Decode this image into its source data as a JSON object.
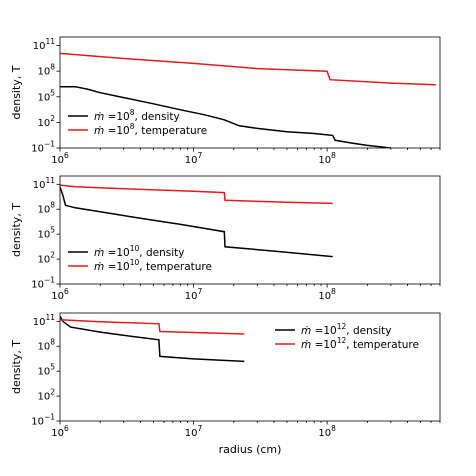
{
  "chart_data": [
    {
      "type": "line",
      "xscale": "log",
      "yscale": "log",
      "xlim": [
        1000000.0,
        700000000.0
      ],
      "ylim": [
        0.1,
        1000000000000.0
      ],
      "xlabel": "",
      "ylabel": "density, T",
      "x_tick_labels": [
        "10^6",
        "10^7",
        "10^8"
      ],
      "y_tick_labels": [
        "10^-1",
        "10^2",
        "10^5",
        "10^8",
        "10^11"
      ],
      "legend_loc": "lower-left",
      "series": [
        {
          "name": "ṁ = 10^8, density",
          "color": "#000000",
          "x": [
            1000000.0,
            1300000.0,
            1600000.0,
            2000000.0,
            3000000.0,
            5000000.0,
            8000000.0,
            12000000.0,
            17000000.0,
            22000000.0,
            30000000.0,
            50000000.0,
            80000000.0,
            110000000.0,
            115000000.0,
            150000000.0,
            200000000.0,
            300000000.0
          ],
          "y": [
            1500000.0,
            1500000.0,
            800000.0,
            300000.0,
            80000.0,
            15000.0,
            3000.0,
            800,
            200,
            40,
            20,
            8,
            5,
            3,
            0.8,
            0.4,
            0.2,
            0.1
          ]
        },
        {
          "name": "ṁ = 10^8, temperature",
          "color": "#e41a1c",
          "x": [
            1000000.0,
            3000000.0,
            10000000.0,
            30000000.0,
            100000000.0,
            105000000.0,
            300000000.0,
            650000000.0
          ],
          "y": [
            12000000000.0,
            3000000000.0,
            800000000.0,
            200000000.0,
            100000000.0,
            10000000.0,
            4000000.0,
            2500000.0
          ]
        }
      ]
    },
    {
      "type": "line",
      "xscale": "log",
      "yscale": "log",
      "xlim": [
        1000000.0,
        700000000.0
      ],
      "ylim": [
        0.1,
        1000000000000.0
      ],
      "xlabel": "",
      "ylabel": "density, T",
      "x_tick_labels": [
        "10^6",
        "10^7",
        "10^8"
      ],
      "y_tick_labels": [
        "10^-1",
        "10^2",
        "10^5",
        "10^8",
        "10^11"
      ],
      "legend_loc": "lower-left",
      "series": [
        {
          "name": "ṁ = 10^10, density",
          "color": "#000000",
          "x": [
            1000000.0,
            1050000.0,
            1100000.0,
            1300000.0,
            2000000.0,
            4000000.0,
            8000000.0,
            17000000.0,
            17200000.0,
            40000000.0,
            110000000.0
          ],
          "y": [
            50000000000.0,
            5000000000.0,
            300000000.0,
            150000000.0,
            50000000.0,
            8000000.0,
            1500000.0,
            200000.0,
            3000.0,
            900,
            200
          ]
        },
        {
          "name": "ṁ = 10^10, temperature",
          "color": "#e41a1c",
          "x": [
            1000000.0,
            1300000.0,
            3000000.0,
            10000000.0,
            17000000.0,
            17200000.0,
            50000000.0,
            110000000.0
          ],
          "y": [
            80000000000.0,
            50000000000.0,
            30000000000.0,
            15000000000.0,
            10000000000.0,
            1200000000.0,
            700000000.0,
            500000000.0
          ]
        }
      ]
    },
    {
      "type": "line",
      "xscale": "log",
      "yscale": "log",
      "xlim": [
        1000000.0,
        700000000.0
      ],
      "ylim": [
        0.1,
        1000000000000.0
      ],
      "xlabel": "radius (cm)",
      "ylabel": "density, T",
      "x_tick_labels": [
        "10^6",
        "10^7",
        "10^8"
      ],
      "y_tick_labels": [
        "10^-1",
        "10^2",
        "10^5",
        "10^8",
        "10^11"
      ],
      "legend_loc": "top-right",
      "series": [
        {
          "name": "ṁ = 10^12, density",
          "color": "#000000",
          "x": [
            1000000.0,
            1050000.0,
            1200000.0,
            2000000.0,
            3500000.0,
            5500000.0,
            5600000.0,
            10000000.0,
            24000000.0
          ],
          "y": [
            400000000000.0,
            100000000000.0,
            20000000000.0,
            5000000000.0,
            1500000000.0,
            600000000.0,
            6000000.0,
            3000000.0,
            1500000.0
          ]
        },
        {
          "name": "ṁ = 10^12, temperature",
          "color": "#e41a1c",
          "x": [
            1000000.0,
            2000000.0,
            5500000.0,
            5600000.0,
            10000000.0,
            24000000.0
          ],
          "y": [
            150000000000.0,
            90000000000.0,
            50000000000.0,
            6000000000.0,
            4500000000.0,
            3000000000.0
          ]
        }
      ]
    }
  ]
}
